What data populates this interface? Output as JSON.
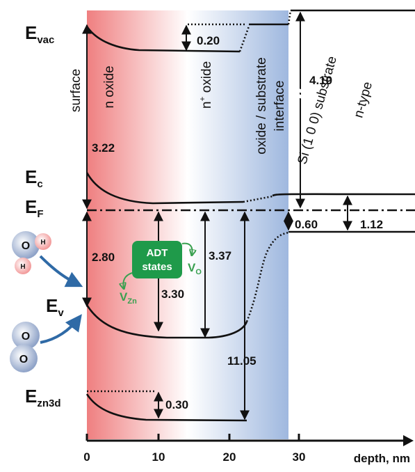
{
  "levels": [
    {
      "symbol": "E",
      "sub": "vac"
    },
    {
      "symbol": "E",
      "sub": "c"
    },
    {
      "symbol": "E",
      "sub": "F"
    },
    {
      "symbol": "E",
      "sub": "v"
    },
    {
      "symbol": "E",
      "sub": "zn3d"
    }
  ],
  "regions": {
    "surface": "surface",
    "n_oxide": "n oxide",
    "n_plus_oxide": {
      "n": "n",
      "sup": "+",
      "rest": " oxide"
    },
    "interface": [
      "oxide / substrate",
      "interface"
    ],
    "substrate": [
      "Si (1 0 0) substrate",
      "n-type"
    ]
  },
  "gaps": {
    "vac_step": "0.20",
    "affinity": "3.22",
    "si_affinity": "4.10",
    "ef_ev_surface": "2.80",
    "ef_ev_10": "3.30",
    "ef_ev_17": "3.37",
    "ef_zn3d": "11.05",
    "zn3d_step": "0.30",
    "si_ef_ev": "0.60",
    "si_gap": "1.12"
  },
  "defects": {
    "box": [
      "ADT",
      "states"
    ],
    "vo": {
      "symbol": "V",
      "sub": "O"
    },
    "vzn": {
      "symbol": "V",
      "sub": "Zn"
    }
  },
  "molecules": {
    "water": [
      "O",
      "H",
      "H"
    ],
    "oxygen": [
      "O",
      "O"
    ]
  },
  "axis": {
    "ticks": [
      "0",
      "10",
      "20",
      "30"
    ],
    "label": "depth, nm"
  }
}
